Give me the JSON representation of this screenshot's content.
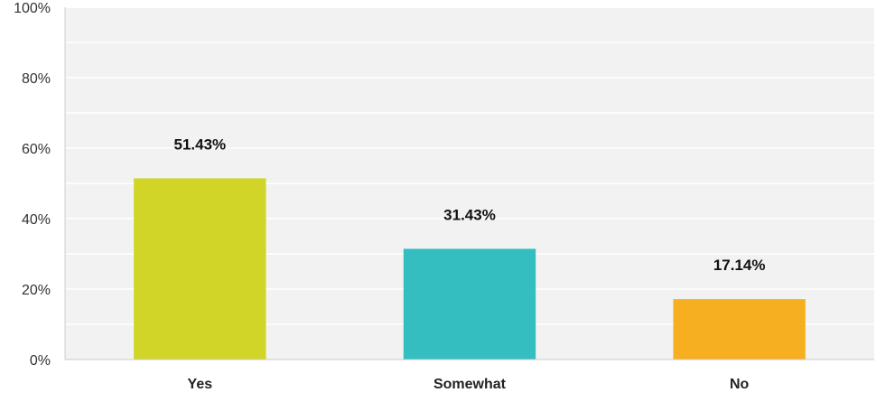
{
  "chart_data": {
    "type": "bar",
    "title": "",
    "xlabel": "",
    "ylabel": "",
    "categories": [
      "Yes",
      "Somewhat",
      "No"
    ],
    "values": [
      51.43,
      31.43,
      17.14
    ],
    "value_labels": [
      "51.43%",
      "31.43%",
      "17.14%"
    ],
    "colors": [
      "#D0D527",
      "#34BEBF",
      "#F6AF21"
    ],
    "ylim": [
      0,
      100
    ],
    "yticks": [
      0,
      20,
      40,
      60,
      80,
      100
    ],
    "ytick_labels": [
      "0%",
      "20%",
      "40%",
      "60%",
      "80%",
      "100%"
    ],
    "grid": true,
    "minor_grid": true,
    "legend": "none",
    "background": "#F2F2F2",
    "grid_color": "#FFFFFF"
  }
}
